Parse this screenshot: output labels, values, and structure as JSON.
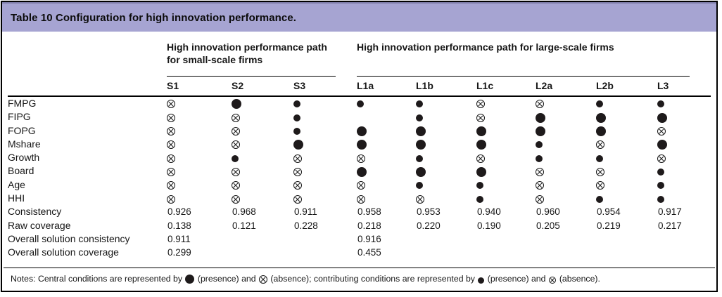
{
  "title": "Table 10 Configuration for high innovation performance.",
  "groups": [
    {
      "label": "High innovation performance path for small-scale firms",
      "columns": [
        "S1",
        "S2",
        "S3"
      ]
    },
    {
      "label": "High innovation performance path for large-scale firms",
      "columns": [
        "L1a",
        "L1b",
        "L1c",
        "L2a",
        "L2b",
        "L3"
      ]
    }
  ],
  "symbol_legend": {
    "P": "central condition present (large filled circle)",
    "p": "contributing condition present (small filled circle)",
    "A": "condition absent (crossed circle)",
    "": "blank cell"
  },
  "rows": [
    {
      "label": "FMPG",
      "type": "symbols",
      "cells": [
        "A",
        "P",
        "p",
        "p",
        "p",
        "A",
        "A",
        "p",
        "p"
      ]
    },
    {
      "label": "FIPG",
      "type": "symbols",
      "cells": [
        "A",
        "A",
        "p",
        "",
        "p",
        "A",
        "P",
        "P",
        "P"
      ]
    },
    {
      "label": "FOPG",
      "type": "symbols",
      "cells": [
        "A",
        "A",
        "p",
        "P",
        "P",
        "P",
        "P",
        "P",
        "A"
      ]
    },
    {
      "label": "Mshare",
      "type": "symbols",
      "cells": [
        "A",
        "A",
        "P",
        "P",
        "P",
        "P",
        "p",
        "A",
        "P"
      ]
    },
    {
      "label": "Growth",
      "type": "symbols",
      "cells": [
        "A",
        "p",
        "A",
        "A",
        "p",
        "A",
        "p",
        "p",
        "A"
      ]
    },
    {
      "label": "Board",
      "type": "symbols",
      "cells": [
        "A",
        "A",
        "A",
        "P",
        "P",
        "P",
        "A",
        "A",
        "p"
      ]
    },
    {
      "label": "Age",
      "type": "symbols",
      "cells": [
        "A",
        "A",
        "A",
        "A",
        "p",
        "p",
        "A",
        "A",
        "p"
      ]
    },
    {
      "label": "HHI",
      "type": "symbols",
      "cells": [
        "A",
        "A",
        "A",
        "A",
        "A",
        "p",
        "A",
        "p",
        "p"
      ]
    },
    {
      "label": "Consistency",
      "type": "text",
      "cells": [
        "0.926",
        "0.968",
        "0.911",
        "0.958",
        "0.953",
        "0.940",
        "0.960",
        "0.954",
        "0.917"
      ]
    },
    {
      "label": "Raw coverage",
      "type": "text",
      "cells": [
        "0.138",
        "0.121",
        "0.228",
        "0.218",
        "0.220",
        "0.190",
        "0.205",
        "0.219",
        "0.217"
      ]
    },
    {
      "label": "Overall solution consistency",
      "type": "text",
      "cells": [
        "0.911",
        "",
        "",
        "0.916",
        "",
        "",
        "",
        "",
        ""
      ]
    },
    {
      "label": "Overall solution coverage",
      "type": "text",
      "cells": [
        "0.299",
        "",
        "",
        "0.455",
        "",
        "",
        "",
        "",
        ""
      ]
    }
  ],
  "notes": {
    "segments": [
      {
        "text": "Notes: Central conditions are represented by "
      },
      {
        "symbol": "central-presence"
      },
      {
        "text": " (presence) and "
      },
      {
        "symbol": "central-absence"
      },
      {
        "text": " (absence); contributing conditions are represented by "
      },
      {
        "symbol": "contributing-presence"
      },
      {
        "text": " (presence) and "
      },
      {
        "symbol": "contributing-absence"
      },
      {
        "text": " (absence)."
      }
    ]
  },
  "colors": {
    "header_bg": "#a6a4d2",
    "header_top_strip": "#7d7ca8",
    "ink": "#161616",
    "dot": "#1e1a1b"
  }
}
